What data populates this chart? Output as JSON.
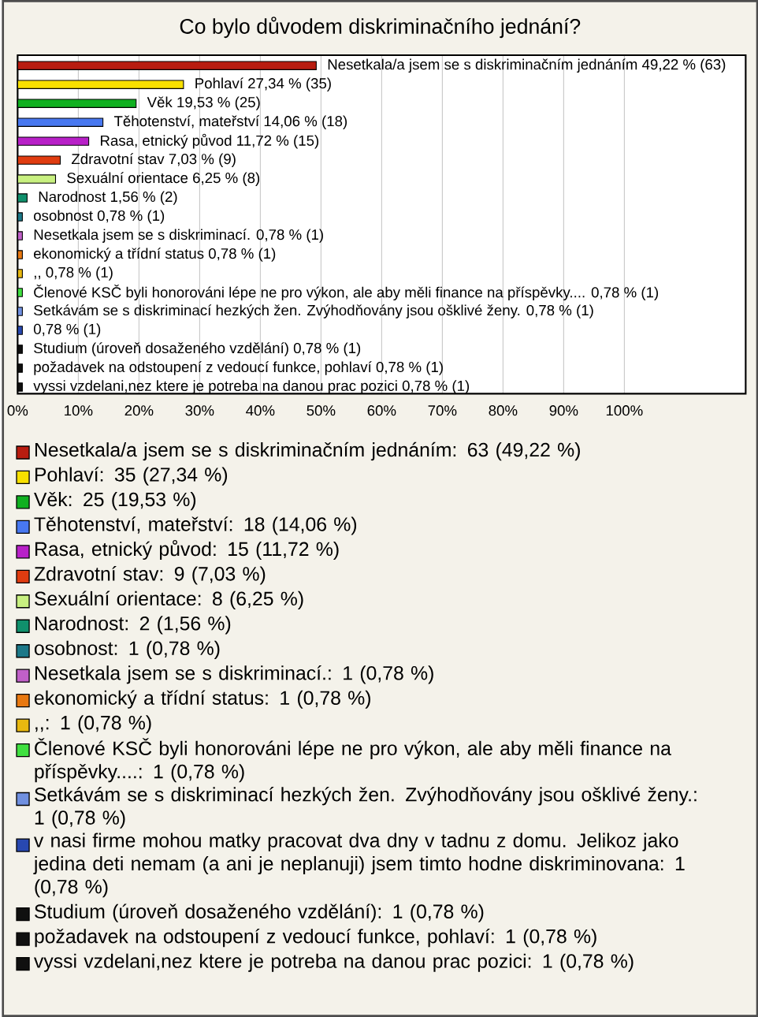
{
  "chart_data": {
    "type": "bar",
    "orientation": "horizontal",
    "title": "Co bylo důvodem diskriminačního jednání?",
    "categories": [
      "Nesetkala/a jsem se s diskriminačním jednáním 49,22 % (63)",
      "Pohlaví 27,34 % (35)",
      "Věk 19,53 % (25)",
      "Těhotenství, mateřství 14,06 % (18)",
      "Rasa, etnický původ 11,72 % (15)",
      "Zdravotní stav 7,03 % (9)",
      "Sexuální orientace 6,25 % (8)",
      "Narodnost 1,56 % (2)",
      "osobnost 0,78 % (1)",
      "Nesetkala jsem se s diskriminací. 0,78 % (1)",
      "ekonomický a třídní status 0,78 % (1)",
      ",, 0,78 % (1)",
      "Členové  KSČ byli honorováni lépe ne pro výkon, ale aby měli finance na příspěvky.... 0,78 % (1)",
      "Setkávám se s diskriminací hezkých žen. Zvýhodňovány jsou ošklivé ženy. 0,78 % (1)",
      "0,78 % (1)",
      "Studium (úroveň dosaženého vzdělání) 0,78 % (1)",
      "požadavek na odstoupení z vedoucí funkce, pohlaví 0,78 % (1)",
      "vyssi vzdelani,nez ktere je potreba na danou prac pozici 0,78 % (1)"
    ],
    "series": [
      {
        "name": "Nesetkala/a jsem se s diskriminačním jednáním: 63 (49,22 %)",
        "color": "#b81c10",
        "values": [
          49.22,
          null,
          null,
          null,
          null,
          null,
          null,
          null,
          null,
          null,
          null,
          null,
          null,
          null,
          null,
          null,
          null,
          null
        ]
      },
      {
        "name": "Pohlaví: 35 (27,34 %)",
        "color": "#f8e000",
        "values": [
          null,
          27.34,
          null,
          null,
          null,
          null,
          null,
          null,
          null,
          null,
          null,
          null,
          null,
          null,
          null,
          null,
          null,
          null
        ]
      },
      {
        "name": "Věk: 25 (19,53 %)",
        "color": "#10b020",
        "values": [
          null,
          null,
          19.53,
          null,
          null,
          null,
          null,
          null,
          null,
          null,
          null,
          null,
          null,
          null,
          null,
          null,
          null,
          null
        ]
      },
      {
        "name": "Těhotenství, mateřství: 18 (14,06 %)",
        "color": "#4878f0",
        "values": [
          null,
          null,
          null,
          14.06,
          null,
          null,
          null,
          null,
          null,
          null,
          null,
          null,
          null,
          null,
          null,
          null,
          null,
          null
        ]
      },
      {
        "name": "Rasa, etnický původ: 15 (11,72 %)",
        "color": "#b820c8",
        "values": [
          null,
          null,
          null,
          null,
          11.72,
          null,
          null,
          null,
          null,
          null,
          null,
          null,
          null,
          null,
          null,
          null,
          null,
          null
        ]
      },
      {
        "name": "Zdravotní stav: 9 (7,03 %)",
        "color": "#e03c10",
        "values": [
          null,
          null,
          null,
          null,
          null,
          7.03,
          null,
          null,
          null,
          null,
          null,
          null,
          null,
          null,
          null,
          null,
          null,
          null
        ]
      },
      {
        "name": "Sexuální orientace: 8 (6,25 %)",
        "color": "#c8f080",
        "values": [
          null,
          null,
          null,
          null,
          null,
          null,
          6.25,
          null,
          null,
          null,
          null,
          null,
          null,
          null,
          null,
          null,
          null,
          null
        ]
      },
      {
        "name": "Narodnost: 2 (1,56 %)",
        "color": "#10906c",
        "values": [
          null,
          null,
          null,
          null,
          null,
          null,
          null,
          1.56,
          null,
          null,
          null,
          null,
          null,
          null,
          null,
          null,
          null,
          null
        ]
      },
      {
        "name": "osobnost: 1 (0,78 %)",
        "color": "#1c7888",
        "values": [
          null,
          null,
          null,
          null,
          null,
          null,
          null,
          null,
          0.78,
          null,
          null,
          null,
          null,
          null,
          null,
          null,
          null,
          null
        ]
      },
      {
        "name": "Nesetkala jsem se s diskriminací.: 1 (0,78 %)",
        "color": "#c060c8",
        "values": [
          null,
          null,
          null,
          null,
          null,
          null,
          null,
          null,
          null,
          0.78,
          null,
          null,
          null,
          null,
          null,
          null,
          null,
          null
        ]
      },
      {
        "name": "ekonomický a třídní status: 1 (0,78 %)",
        "color": "#e87810",
        "values": [
          null,
          null,
          null,
          null,
          null,
          null,
          null,
          null,
          null,
          null,
          0.78,
          null,
          null,
          null,
          null,
          null,
          null,
          null
        ]
      },
      {
        "name": ",,: 1 (0,78 %)",
        "color": "#e8b810",
        "values": [
          null,
          null,
          null,
          null,
          null,
          null,
          null,
          null,
          null,
          null,
          null,
          0.78,
          null,
          null,
          null,
          null,
          null,
          null
        ]
      },
      {
        "name": "Členové  KSČ byli honorováni lépe ne pro výkon, ale aby měli finance na příspěvky....: 1 (0,78 %)",
        "color": "#40e040",
        "values": [
          null,
          null,
          null,
          null,
          null,
          null,
          null,
          null,
          null,
          null,
          null,
          null,
          0.78,
          null,
          null,
          null,
          null,
          null
        ]
      },
      {
        "name": "Setkávám se s diskriminací hezkých žen. Zvýhodňovány jsou ošklivé ženy.: 1 (0,78 %)",
        "color": "#7090e0",
        "values": [
          null,
          null,
          null,
          null,
          null,
          null,
          null,
          null,
          null,
          null,
          null,
          null,
          null,
          0.78,
          null,
          null,
          null,
          null
        ]
      },
      {
        "name": "v nasi firme mohou matky pracovat dva dny v tadnu z domu. Jelikoz jako jedina deti nemam (a ani je neplanuji) jsem timto hodne diskriminovana: 1 (0,78 %)",
        "color": "#2848b0",
        "values": [
          null,
          null,
          null,
          null,
          null,
          null,
          null,
          null,
          null,
          null,
          null,
          null,
          null,
          null,
          0.78,
          null,
          null,
          null
        ]
      },
      {
        "name": "Studium (úroveň dosaženého vzdělání): 1 (0,78 %)",
        "color": "#101010",
        "values": [
          null,
          null,
          null,
          null,
          null,
          null,
          null,
          null,
          null,
          null,
          null,
          null,
          null,
          null,
          null,
          0.78,
          null,
          null
        ]
      },
      {
        "name": "požadavek na odstoupení z vedoucí funkce, pohlaví: 1 (0,78 %)",
        "color": "#101010",
        "values": [
          null,
          null,
          null,
          null,
          null,
          null,
          null,
          null,
          null,
          null,
          null,
          null,
          null,
          null,
          null,
          null,
          0.78,
          null
        ]
      },
      {
        "name": "vyssi vzdelani,nez ktere je potreba na danou prac pozici: 1 (0,78 %)",
        "color": "#101010",
        "values": [
          null,
          null,
          null,
          null,
          null,
          null,
          null,
          null,
          null,
          null,
          null,
          null,
          null,
          null,
          null,
          null,
          null,
          0.78
        ]
      }
    ],
    "xlim": [
      0,
      120
    ],
    "xticks": [
      {
        "value": 0,
        "label": "0%"
      },
      {
        "value": 10,
        "label": "10%"
      },
      {
        "value": 20,
        "label": "20%"
      },
      {
        "value": 30,
        "label": "30%"
      },
      {
        "value": 40,
        "label": "40%"
      },
      {
        "value": 50,
        "label": "50%"
      },
      {
        "value": 60,
        "label": "60%"
      },
      {
        "value": 70,
        "label": "70%"
      },
      {
        "value": 80,
        "label": "80%"
      },
      {
        "value": 90,
        "label": "90%"
      },
      {
        "value": 100,
        "label": "100%"
      }
    ],
    "grid": "x",
    "legend": "bottom"
  }
}
